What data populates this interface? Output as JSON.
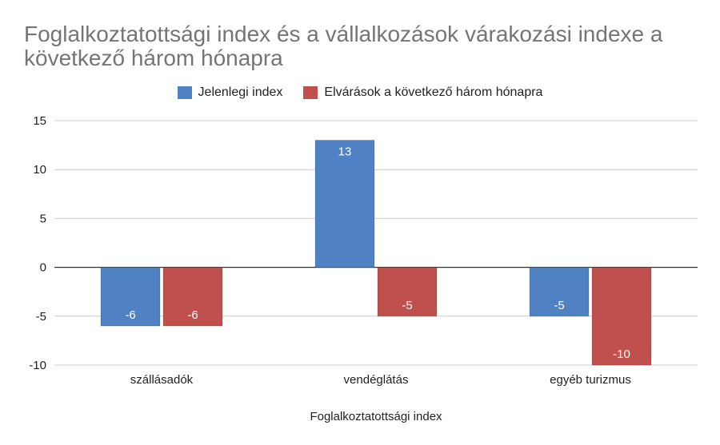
{
  "chart_data": {
    "type": "bar",
    "title": "Foglalkoztatottsági index és a vállalkozások várakozási indexe a következő három hónapra",
    "xlabel": "Foglalkoztatottsági index",
    "ylabel": "",
    "categories": [
      "szállásadók",
      "vendéglátás",
      "egyéb turizmus"
    ],
    "series": [
      {
        "name": "Jelenlegi index",
        "values": [
          -6,
          13,
          -5
        ],
        "color": "#4f81c3"
      },
      {
        "name": "Elvárások a következő három hónapra",
        "values": [
          -6,
          -5,
          -10
        ],
        "color": "#c0504d"
      }
    ],
    "ylim": [
      -10,
      15
    ],
    "yticks": [
      15,
      10,
      5,
      0,
      -5,
      -10
    ],
    "grid": true,
    "legend_position": "top-center",
    "data_labels": true
  }
}
